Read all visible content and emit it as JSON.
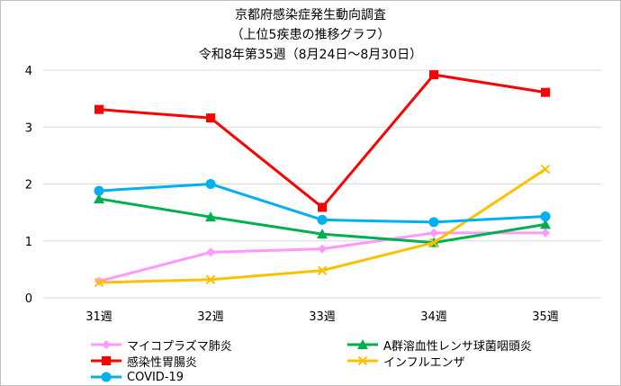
{
  "title_lines": [
    "京都府感染症発生動向調査",
    "（上位5疾患の推移グラフ）",
    "令和8年第35週（8月24日～8月30日）"
  ],
  "chart_data": {
    "type": "line",
    "title": "京都府感染症発生動向調査（上位5疾患の推移グラフ）令和8年第35週（8月24日～8月30日）",
    "categories": [
      "31週",
      "32週",
      "33週",
      "34週",
      "35週"
    ],
    "ylim": [
      0,
      4
    ],
    "yticks": [
      "0",
      "1",
      "2",
      "3",
      "4"
    ],
    "grid": true,
    "legend_position": "bottom",
    "series": [
      {
        "name": "マイコプラズマ肺炎",
        "color": "#ff99ff",
        "marker": "diamond",
        "values": [
          0.29,
          0.8,
          0.86,
          1.14,
          1.14
        ]
      },
      {
        "name": "A群溶血性レンサ球菌咽頭炎",
        "color": "#00b050",
        "marker": "triangle",
        "values": [
          1.74,
          1.42,
          1.12,
          0.97,
          1.29
        ]
      },
      {
        "name": "感染性胃腸炎",
        "color": "#ff0000",
        "marker": "square",
        "values": [
          3.31,
          3.16,
          1.59,
          3.92,
          3.61
        ]
      },
      {
        "name": "インフルエンザ",
        "color": "#ffc000",
        "marker": "x",
        "values": [
          0.27,
          0.32,
          0.48,
          0.97,
          2.26
        ]
      },
      {
        "name": "COVID-19",
        "color": "#00b0f0",
        "marker": "circle",
        "values": [
          1.88,
          2.0,
          1.37,
          1.33,
          1.43
        ]
      }
    ]
  }
}
